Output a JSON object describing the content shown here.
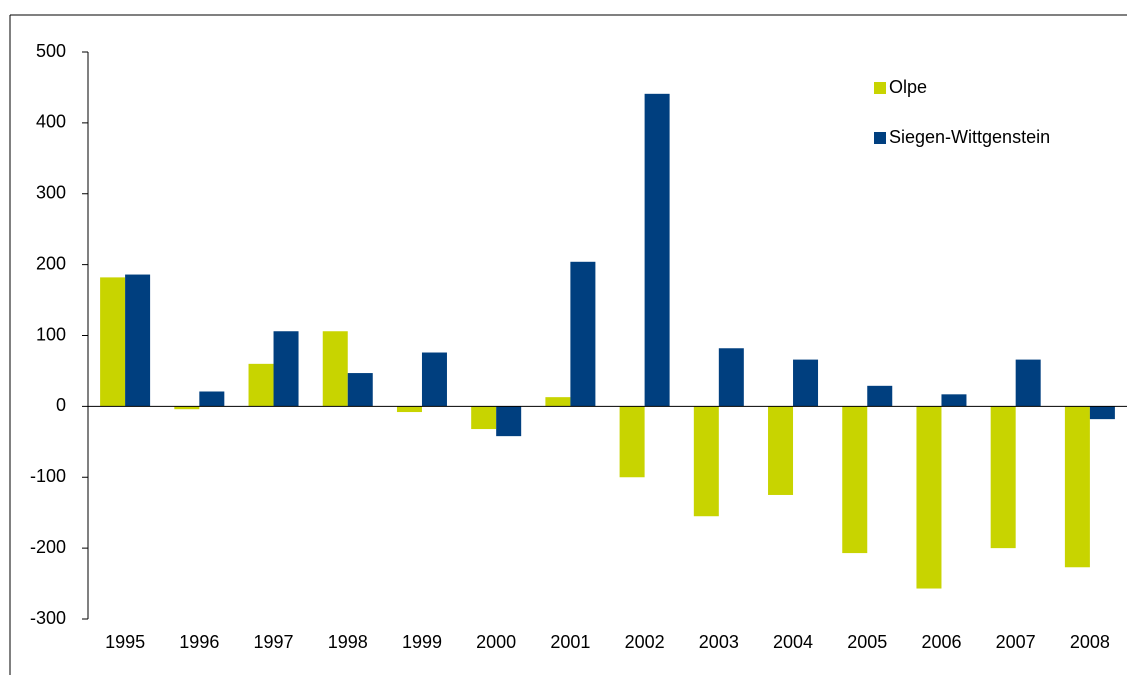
{
  "chart_data": {
    "type": "bar",
    "categories": [
      "1995",
      "1996",
      "1997",
      "1998",
      "1999",
      "2000",
      "2001",
      "2002",
      "2003",
      "2004",
      "2005",
      "2006",
      "2007",
      "2008"
    ],
    "series": [
      {
        "name": "Olpe",
        "color": "#c8d400",
        "values": [
          182,
          -4,
          60,
          106,
          -8,
          -32,
          13,
          -100,
          -155,
          -125,
          -207,
          -257,
          -200,
          -227
        ]
      },
      {
        "name": "Siegen-Wittgenstein",
        "color": "#003f7f",
        "values": [
          186,
          21,
          106,
          47,
          76,
          -42,
          204,
          441,
          82,
          66,
          29,
          17,
          66,
          -18
        ]
      }
    ],
    "ylim": [
      -300,
      500
    ],
    "yticks": [
      -300,
      -200,
      -100,
      0,
      100,
      200,
      300,
      400,
      500
    ],
    "legend": "upper right"
  }
}
